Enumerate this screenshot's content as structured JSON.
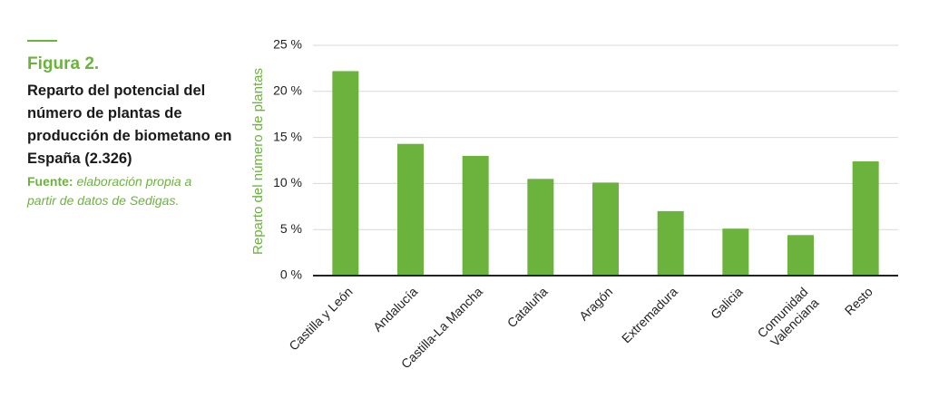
{
  "figure_label": "Figura 2.",
  "caption_title": "Reparto del potencial del número de plantas de producción de biometano en España (2.326)",
  "source_label": "Fuente:",
  "source_text": "elaboración propia a partir de datos de Sedigas.",
  "chart_data": {
    "type": "bar",
    "ylabel": "Reparto del número de plantas",
    "categories": [
      "Castilla y León",
      "Andalucía",
      "Castilla-La Mancha",
      "Cataluña",
      "Aragón",
      "Extremadura",
      "Galicia",
      "Comunidad\nValenciana",
      "Resto"
    ],
    "values": [
      22.2,
      14.3,
      13.0,
      10.5,
      10.1,
      7.0,
      5.1,
      4.4,
      12.4
    ],
    "color": "#6cb33e",
    "ylim": [
      0,
      25
    ],
    "yticks": [
      {
        "value": 0,
        "label": "0 %"
      },
      {
        "value": 5,
        "label": "5 %"
      },
      {
        "value": 10,
        "label": "10 %"
      },
      {
        "value": 15,
        "label": "15 %"
      },
      {
        "value": 20,
        "label": "20 %"
      },
      {
        "value": 25,
        "label": "25 %"
      }
    ],
    "grid": true
  }
}
